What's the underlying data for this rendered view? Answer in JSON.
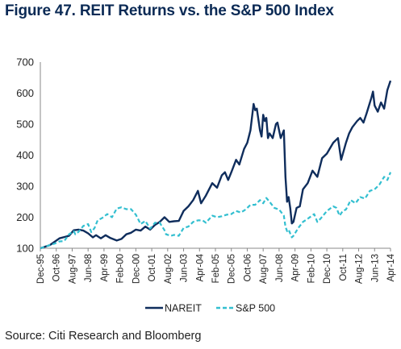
{
  "figure": {
    "title": "Figure 47. REIT Returns vs. the S&P 500 Index",
    "source": "Source: Citi Research and Bloomberg"
  },
  "colors": {
    "nareit": "#0f2d5c",
    "sp500": "#33bfd0",
    "axis": "#888888"
  },
  "chart_data": {
    "type": "line",
    "title": "",
    "xlabel": "",
    "ylabel": "",
    "ylim": [
      100,
      700
    ],
    "yticks": [
      100,
      200,
      300,
      400,
      500,
      600,
      700
    ],
    "grid": false,
    "legend": "bottom-center",
    "x_start": "Dec-95",
    "x_end": "Apr-14",
    "xtick_labels": [
      "Dec-95",
      "Oct-96",
      "Aug-97",
      "Jun-98",
      "Apr-99",
      "Feb-00",
      "Dec-00",
      "Oct-01",
      "Aug-02",
      "Jun-03",
      "Apr-04",
      "Feb-05",
      "Dec-05",
      "Oct-06",
      "Aug-07",
      "Jun-08",
      "Apr-09",
      "Feb-10",
      "Dec-10",
      "Oct-11",
      "Aug-12",
      "Jun-13",
      "Apr-14"
    ],
    "series": [
      {
        "name": "NAREIT",
        "style": "solid",
        "points": [
          [
            "Dec-95",
            100
          ],
          [
            "Jun-96",
            110
          ],
          [
            "Dec-96",
            132
          ],
          [
            "Mar-97",
            136
          ],
          [
            "Jun-97",
            140
          ],
          [
            "Sep-97",
            158
          ],
          [
            "Dec-97",
            160
          ],
          [
            "Mar-98",
            157
          ],
          [
            "Jun-98",
            148
          ],
          [
            "Sep-98",
            135
          ],
          [
            "Nov-98",
            142
          ],
          [
            "Feb-99",
            132
          ],
          [
            "May-99",
            142
          ],
          [
            "Aug-99",
            133
          ],
          [
            "Dec-99",
            125
          ],
          [
            "Mar-00",
            130
          ],
          [
            "Jun-00",
            145
          ],
          [
            "Sep-00",
            150
          ],
          [
            "Dec-00",
            160
          ],
          [
            "Mar-01",
            157
          ],
          [
            "Jun-01",
            170
          ],
          [
            "Sep-01",
            160
          ],
          [
            "Dec-01",
            175
          ],
          [
            "Mar-02",
            185
          ],
          [
            "Jun-02",
            200
          ],
          [
            "Sep-02",
            185
          ],
          [
            "Dec-02",
            187
          ],
          [
            "Mar-03",
            188
          ],
          [
            "Jun-03",
            220
          ],
          [
            "Sep-03",
            235
          ],
          [
            "Dec-03",
            255
          ],
          [
            "Mar-04",
            285
          ],
          [
            "May-04",
            245
          ],
          [
            "Aug-04",
            270
          ],
          [
            "Dec-04",
            310
          ],
          [
            "Mar-05",
            295
          ],
          [
            "Jun-05",
            335
          ],
          [
            "Aug-05",
            345
          ],
          [
            "Oct-05",
            320
          ],
          [
            "Dec-05",
            345
          ],
          [
            "Mar-06",
            385
          ],
          [
            "May-06",
            370
          ],
          [
            "Aug-06",
            420
          ],
          [
            "Oct-06",
            440
          ],
          [
            "Dec-06",
            480
          ],
          [
            "Feb-07",
            565
          ],
          [
            "Mar-07",
            545
          ],
          [
            "Apr-07",
            550
          ],
          [
            "Jun-07",
            480
          ],
          [
            "Jul-07",
            460
          ],
          [
            "Aug-07",
            530
          ],
          [
            "Sep-07",
            510
          ],
          [
            "Oct-07",
            520
          ],
          [
            "Nov-07",
            455
          ],
          [
            "Dec-07",
            470
          ],
          [
            "Feb-08",
            455
          ],
          [
            "Apr-08",
            500
          ],
          [
            "May-08",
            505
          ],
          [
            "Jul-08",
            455
          ],
          [
            "Sep-08",
            480
          ],
          [
            "Oct-08",
            330
          ],
          [
            "Nov-08",
            250
          ],
          [
            "Dec-08",
            265
          ],
          [
            "Jan-09",
            230
          ],
          [
            "Feb-09",
            180
          ],
          [
            "Mar-09",
            185
          ],
          [
            "May-09",
            230
          ],
          [
            "Jul-09",
            235
          ],
          [
            "Sep-09",
            290
          ],
          [
            "Dec-09",
            310
          ],
          [
            "Mar-10",
            350
          ],
          [
            "Jun-10",
            330
          ],
          [
            "Sep-10",
            390
          ],
          [
            "Dec-10",
            405
          ],
          [
            "Apr-11",
            440
          ],
          [
            "Jul-11",
            455
          ],
          [
            "Sep-11",
            385
          ],
          [
            "Dec-11",
            440
          ],
          [
            "Feb-12",
            470
          ],
          [
            "Apr-12",
            490
          ],
          [
            "Jul-12",
            510
          ],
          [
            "Sep-12",
            520
          ],
          [
            "Nov-12",
            505
          ],
          [
            "Jan-13",
            535
          ],
          [
            "Apr-13",
            585
          ],
          [
            "May-13",
            605
          ],
          [
            "Jun-13",
            560
          ],
          [
            "Aug-13",
            540
          ],
          [
            "Oct-13",
            570
          ],
          [
            "Dec-13",
            550
          ],
          [
            "Feb-14",
            610
          ],
          [
            "Apr-14",
            640
          ]
        ]
      },
      {
        "name": "S&P 500",
        "style": "dashed",
        "points": [
          [
            "Dec-95",
            100
          ],
          [
            "Mar-96",
            105
          ],
          [
            "Jun-96",
            110
          ],
          [
            "Sep-96",
            115
          ],
          [
            "Dec-96",
            122
          ],
          [
            "Mar-97",
            123
          ],
          [
            "Jun-97",
            145
          ],
          [
            "Sep-97",
            155
          ],
          [
            "Oct-97",
            145
          ],
          [
            "Dec-97",
            153
          ],
          [
            "Mar-98",
            172
          ],
          [
            "Jun-98",
            178
          ],
          [
            "Aug-98",
            152
          ],
          [
            "Oct-98",
            165
          ],
          [
            "Dec-98",
            190
          ],
          [
            "Mar-99",
            198
          ],
          [
            "Jun-99",
            210
          ],
          [
            "Sep-99",
            200
          ],
          [
            "Dec-99",
            228
          ],
          [
            "Mar-00",
            232
          ],
          [
            "Jun-00",
            226
          ],
          [
            "Sep-00",
            226
          ],
          [
            "Oct-00",
            220
          ],
          [
            "Dec-00",
            208
          ],
          [
            "Mar-01",
            178
          ],
          [
            "Jun-01",
            188
          ],
          [
            "Sep-01",
            163
          ],
          [
            "Dec-01",
            182
          ],
          [
            "Mar-02",
            182
          ],
          [
            "Jun-02",
            158
          ],
          [
            "Jul-02",
            145
          ],
          [
            "Oct-02",
            140
          ],
          [
            "Dec-02",
            143
          ],
          [
            "Mar-03",
            140
          ],
          [
            "Jun-03",
            165
          ],
          [
            "Sep-03",
            170
          ],
          [
            "Dec-03",
            185
          ],
          [
            "Mar-04",
            190
          ],
          [
            "Jun-04",
            190
          ],
          [
            "Aug-04",
            182
          ],
          [
            "Dec-04",
            205
          ],
          [
            "Mar-05",
            200
          ],
          [
            "Jun-05",
            203
          ],
          [
            "Sep-05",
            208
          ],
          [
            "Dec-05",
            210
          ],
          [
            "Mar-06",
            220
          ],
          [
            "Jun-06",
            215
          ],
          [
            "Sep-06",
            225
          ],
          [
            "Dec-06",
            240
          ],
          [
            "Mar-07",
            240
          ],
          [
            "Jun-07",
            255
          ],
          [
            "Aug-07",
            245
          ],
          [
            "Oct-07",
            262
          ],
          [
            "Dec-07",
            250
          ],
          [
            "Mar-08",
            230
          ],
          [
            "Jun-08",
            225
          ],
          [
            "Sep-08",
            205
          ],
          [
            "Oct-08",
            170
          ],
          [
            "Nov-08",
            155
          ],
          [
            "Dec-08",
            160
          ],
          [
            "Feb-09",
            135
          ],
          [
            "Mar-09",
            140
          ],
          [
            "Jun-09",
            165
          ],
          [
            "Sep-09",
            185
          ],
          [
            "Dec-09",
            195
          ],
          [
            "Apr-10",
            210
          ],
          [
            "Jun-10",
            185
          ],
          [
            "Aug-10",
            195
          ],
          [
            "Dec-10",
            220
          ],
          [
            "Apr-11",
            235
          ],
          [
            "Jun-11",
            230
          ],
          [
            "Aug-11",
            205
          ],
          [
            "Oct-11",
            220
          ],
          [
            "Dec-11",
            225
          ],
          [
            "Mar-12",
            255
          ],
          [
            "Jun-12",
            245
          ],
          [
            "Sep-12",
            265
          ],
          [
            "Dec-12",
            260
          ],
          [
            "Mar-13",
            285
          ],
          [
            "Jun-13",
            290
          ],
          [
            "Sep-13",
            305
          ],
          [
            "Dec-13",
            330
          ],
          [
            "Feb-14",
            320
          ],
          [
            "Apr-14",
            345
          ]
        ]
      }
    ]
  }
}
